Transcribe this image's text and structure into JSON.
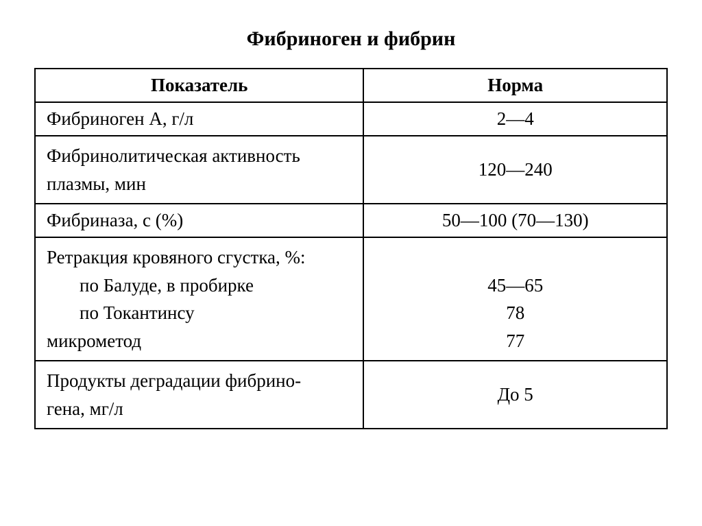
{
  "title": "Фибриноген и фибрин",
  "table": {
    "header_param": "Показатель",
    "header_value": "Норма",
    "rows": [
      {
        "param_lines": [
          "Фибриноген А, г/л"
        ],
        "indent_flags": [
          false
        ],
        "value_lines": [
          "2—4"
        ]
      },
      {
        "param_lines": [
          "Фибринолитическая активность",
          "плазмы, мин"
        ],
        "indent_flags": [
          false,
          false
        ],
        "value_lines": [
          "120—240"
        ]
      },
      {
        "param_lines": [
          "Фибриназа, с (%)"
        ],
        "indent_flags": [
          false
        ],
        "value_lines": [
          "50—100 (70—130)"
        ]
      },
      {
        "param_lines": [
          "Ретракция кровяного сгустка, %:",
          "по Балуде, в пробирке",
          "по Токантинсу",
          "микрометод"
        ],
        "indent_flags": [
          false,
          true,
          true,
          false
        ],
        "value_lines": [
          "",
          "45—65",
          "78",
          "77"
        ]
      },
      {
        "param_lines": [
          "Продукты деградации фибрино-",
          "гена, мг/л"
        ],
        "indent_flags": [
          false,
          false
        ],
        "value_lines": [
          "До 5"
        ]
      }
    ]
  }
}
